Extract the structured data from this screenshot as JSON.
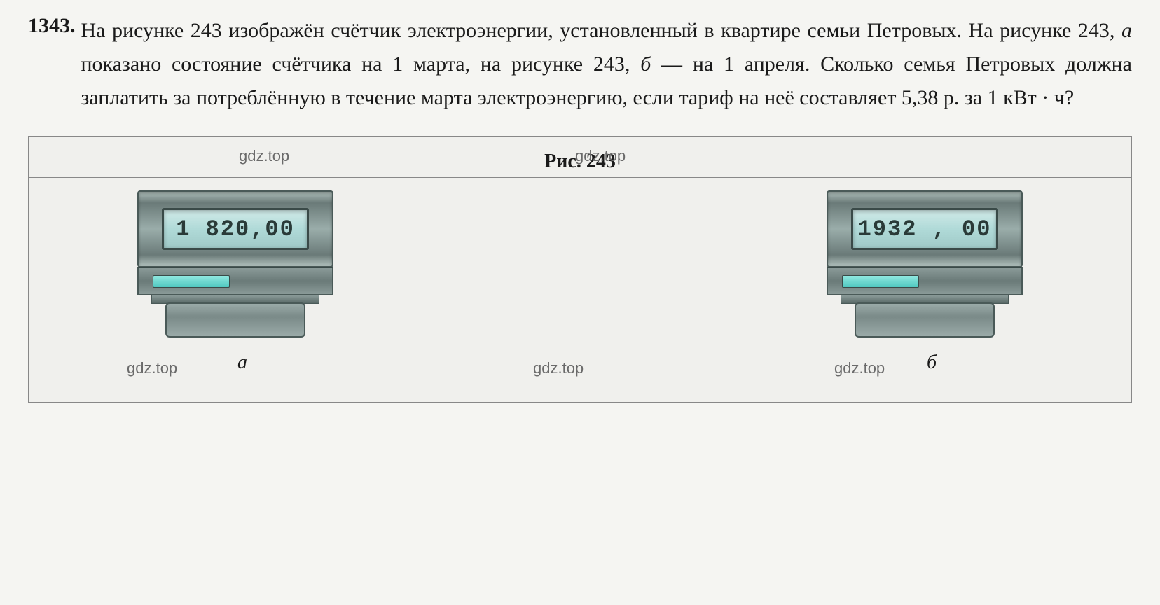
{
  "problem": {
    "number": "1343.",
    "text_parts": {
      "p1": "На рисунке 243 изображён счётчик электроэнергии, установленный в квартире семьи Петровых. На рисунке 243, ",
      "p2": "а",
      "p3": " показано состояние счётчика на 1 марта, на рисунке 243, ",
      "p4": "б",
      "p5": " — на 1 апреля. Сколько семья Петровых должна заплатить за потреблённую в течение марта электроэнергию, если тариф на неё составляет 5,38 р. за 1 кВт · ч?"
    }
  },
  "figure": {
    "title": "Рис. 243",
    "meter_a": {
      "display_value": "1 820,00",
      "label": "а",
      "colors": {
        "body": "#7a8a88",
        "display_bg": "#b0dad8",
        "indicator": "#50c8c0"
      }
    },
    "meter_b": {
      "display_value": "1932 , 00",
      "label": "б",
      "colors": {
        "body": "#7a8a88",
        "display_bg": "#b0dad8",
        "indicator": "#50c8c0"
      }
    }
  },
  "watermark": "gdz.top",
  "colors": {
    "background": "#f5f5f2",
    "text": "#1a1a1a",
    "border": "#888888",
    "watermark_color": "#6a6a6a"
  },
  "typography": {
    "body_fontsize_pt": 22,
    "number_fontsize_pt": 22,
    "display_fontsize_pt": 24,
    "font_family": "Georgia, serif"
  }
}
